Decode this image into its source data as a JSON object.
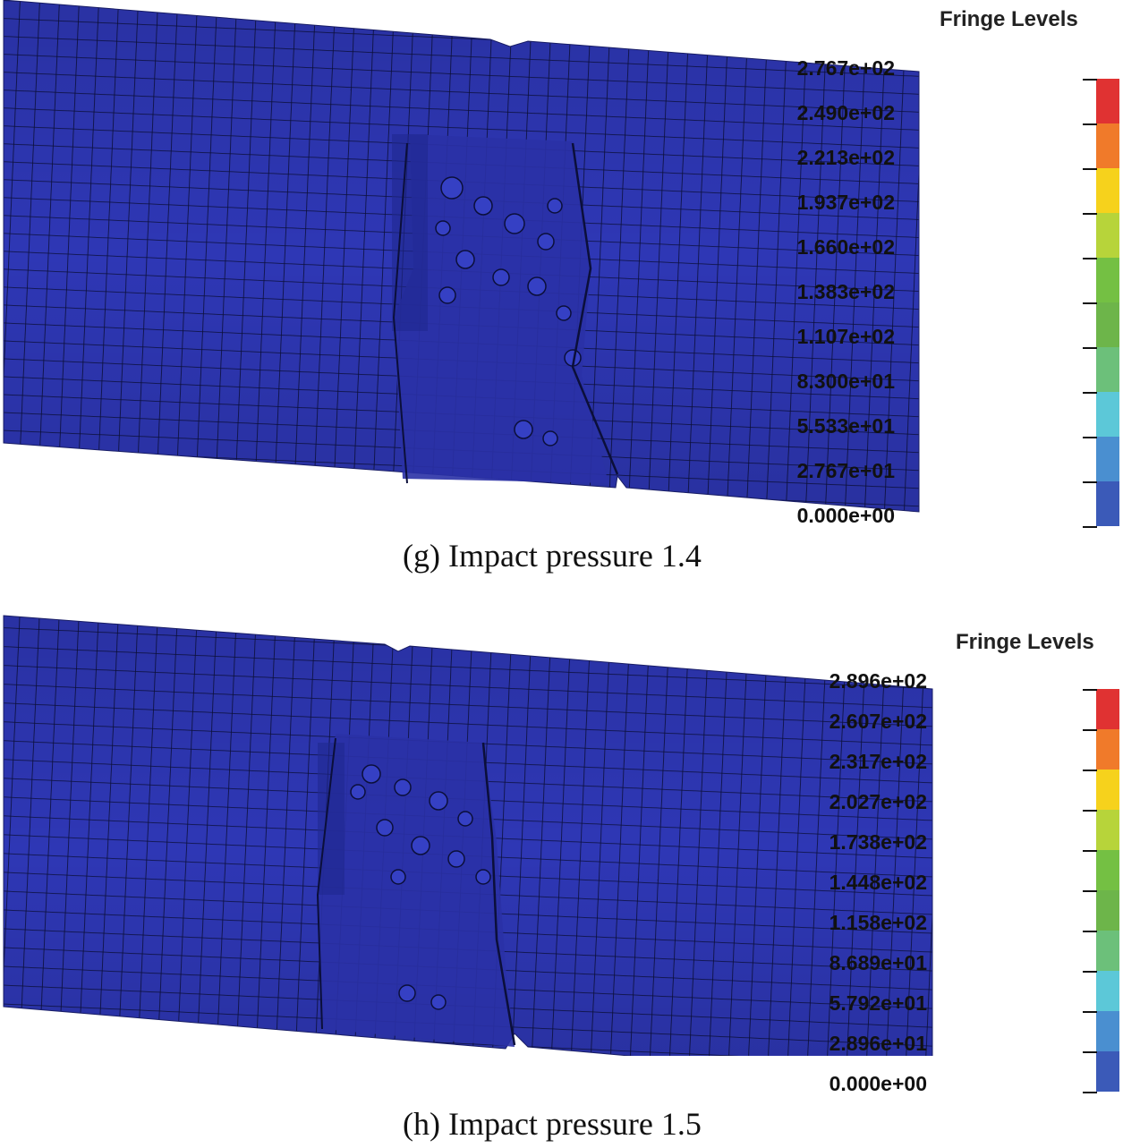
{
  "panels": [
    {
      "id": "g",
      "caption": "(g) Impact pressure 1.4",
      "legend_title": "Fringe Levels",
      "levels": [
        "2.767e+02",
        "2.490e+02",
        "2.213e+02",
        "1.937e+02",
        "1.660e+02",
        "1.383e+02",
        "1.107e+02",
        "8.300e+01",
        "5.533e+01",
        "2.767e+01",
        "0.000e+00"
      ]
    },
    {
      "id": "h",
      "caption": "(h) Impact pressure 1.5",
      "legend_title": "Fringe Levels",
      "levels": [
        "2.896e+02",
        "2.607e+02",
        "2.317e+02",
        "2.027e+02",
        "1.738e+02",
        "1.448e+02",
        "1.158e+02",
        "8.689e+01",
        "5.792e+01",
        "2.896e+01",
        "0.000e+00"
      ]
    }
  ],
  "colors": {
    "mesh_fill": "#2e37b5",
    "mesh_line": "#0b0f3a",
    "fringe": [
      "#e03232",
      "#f07a2a",
      "#f6d21c",
      "#b7d43a",
      "#74c043",
      "#6db54a",
      "#6cc07a",
      "#5cc8d8",
      "#4a8fd0",
      "#3b5ab8"
    ]
  }
}
